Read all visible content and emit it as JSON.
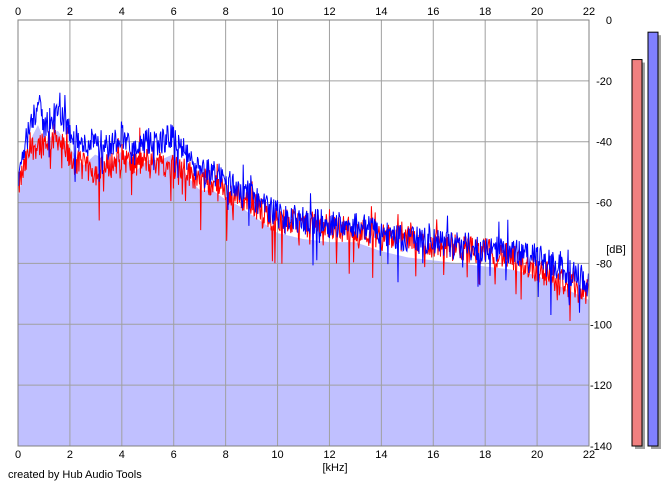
{
  "chart_data": {
    "type": "line",
    "title": "",
    "xlabel": "[kHz]",
    "ylabel": "[dB]",
    "xlim": [
      0,
      22
    ],
    "ylim": [
      -140,
      0
    ],
    "x_ticks": [
      0,
      2,
      4,
      6,
      8,
      10,
      12,
      14,
      16,
      18,
      20,
      22
    ],
    "y_ticks": [
      0,
      -20,
      -40,
      -60,
      -80,
      -100,
      -120,
      -140
    ],
    "grid": true,
    "footer": "created by Hub Audio Tools",
    "fill_color": "#c0c0ff",
    "series": [
      {
        "color": "#0000ff",
        "x": [
          0,
          0.5,
          0.8,
          1,
          1.5,
          2,
          2.5,
          3,
          3.5,
          4,
          4.5,
          5,
          5.5,
          6,
          6.5,
          7,
          7.5,
          8,
          8.5,
          9,
          10,
          11,
          12,
          13,
          14,
          15,
          16,
          17,
          18,
          19,
          20,
          21,
          22
        ],
        "values": [
          -52,
          -33,
          -28,
          -35,
          -30,
          -36,
          -42,
          -38,
          -42,
          -37,
          -44,
          -40,
          -40,
          -38,
          -45,
          -50,
          -50,
          -53,
          -55,
          -58,
          -64,
          -66,
          -67,
          -67,
          -70,
          -72,
          -73,
          -74,
          -75,
          -76,
          -78,
          -82,
          -86
        ]
      },
      {
        "color": "#ff0000",
        "x": [
          0,
          0.5,
          1,
          1.5,
          2,
          2.5,
          3,
          3.5,
          4,
          4.5,
          5,
          5.5,
          6,
          6.5,
          7,
          7.5,
          8,
          8.5,
          9,
          10,
          11,
          12,
          13,
          14,
          15,
          16,
          17,
          18,
          19,
          20,
          21,
          22
        ],
        "values": [
          -55,
          -42,
          -40,
          -38,
          -46,
          -48,
          -50,
          -48,
          -45,
          -48,
          -46,
          -47,
          -48,
          -50,
          -52,
          -54,
          -57,
          -58,
          -60,
          -66,
          -67,
          -68,
          -69,
          -71,
          -72,
          -74,
          -75,
          -76,
          -78,
          -82,
          -86,
          -90
        ]
      }
    ],
    "level_bars": [
      {
        "color": "#f08080",
        "value": -13
      },
      {
        "color": "#8080ff",
        "value": -4
      }
    ]
  }
}
